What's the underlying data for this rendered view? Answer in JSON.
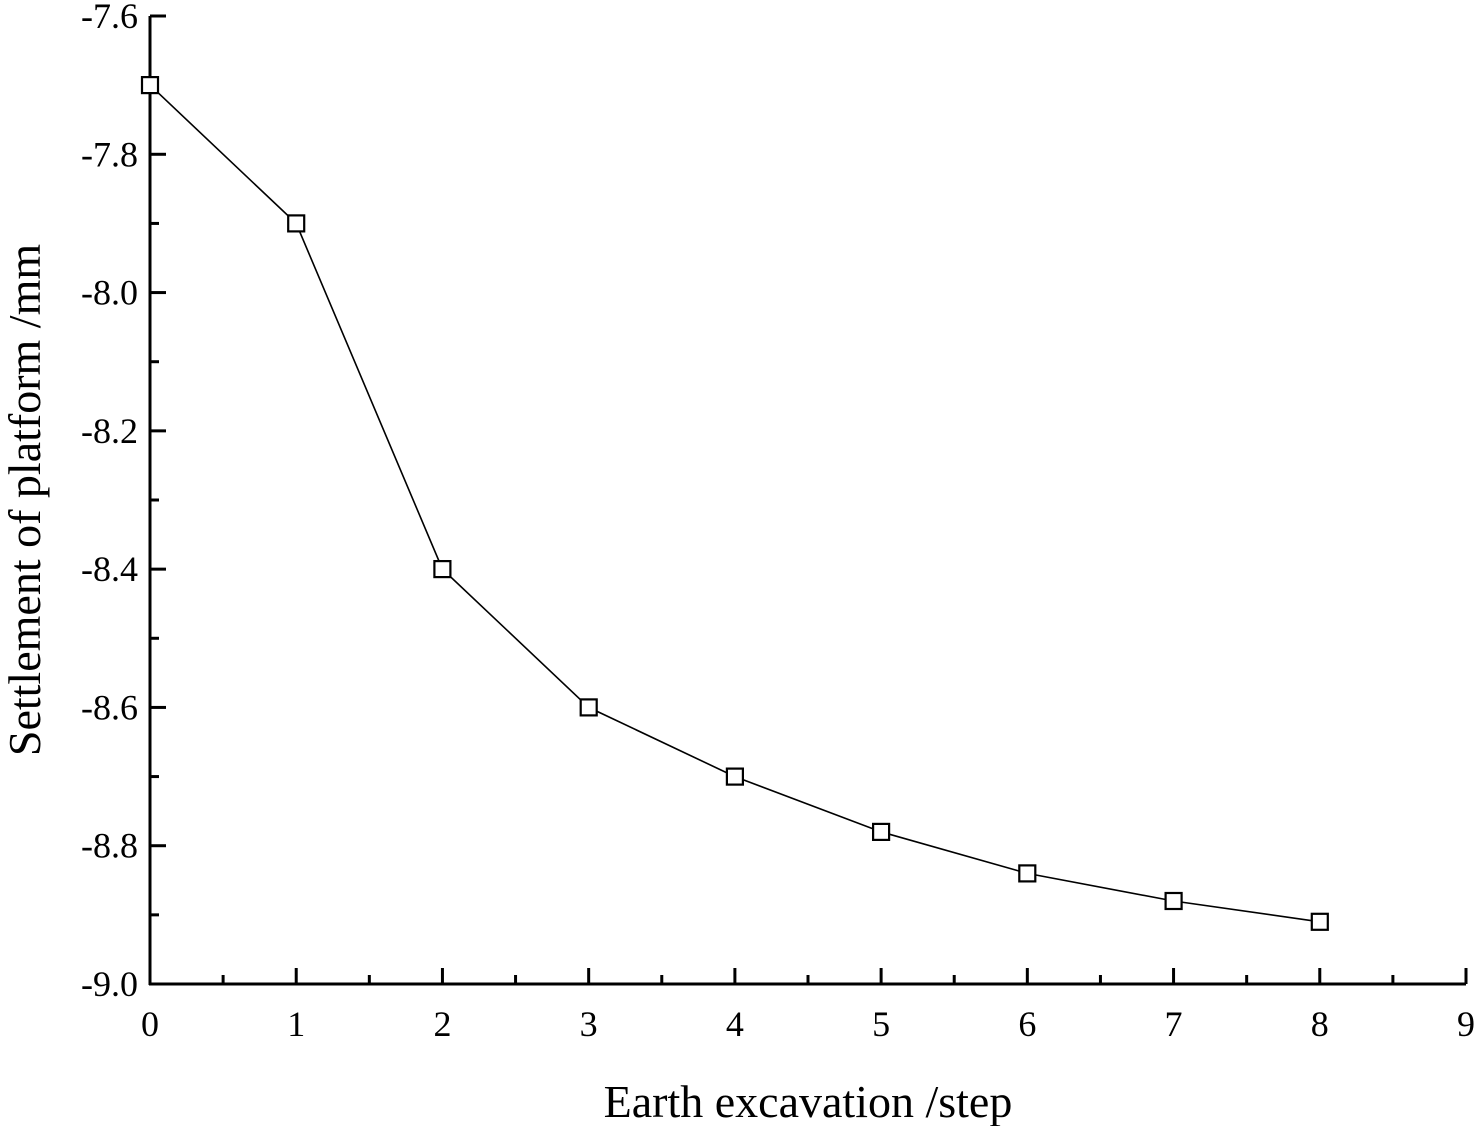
{
  "chart_data": {
    "type": "line",
    "title": "",
    "xlabel": "Earth excavation /step",
    "ylabel": "Settlement of platform /mm",
    "xlim": [
      0,
      9
    ],
    "ylim": [
      -9.0,
      -7.6
    ],
    "x_ticks": [
      "0",
      "1",
      "2",
      "3",
      "4",
      "5",
      "6",
      "7",
      "8",
      "9"
    ],
    "y_ticks": [
      "-7.6",
      "-7.8",
      "-8.0",
      "-8.2",
      "-8.4",
      "-8.6",
      "-8.8",
      "-9.0"
    ],
    "grid": false,
    "legend": "none",
    "marker": "open-square",
    "line_color": "#000000",
    "series": [
      {
        "x": [
          0,
          1,
          2,
          3,
          4,
          5,
          6,
          7,
          8
        ],
        "values": [
          -7.7,
          -7.9,
          -8.4,
          -8.6,
          -8.7,
          -8.78,
          -8.84,
          -8.88,
          -8.91
        ]
      }
    ]
  }
}
